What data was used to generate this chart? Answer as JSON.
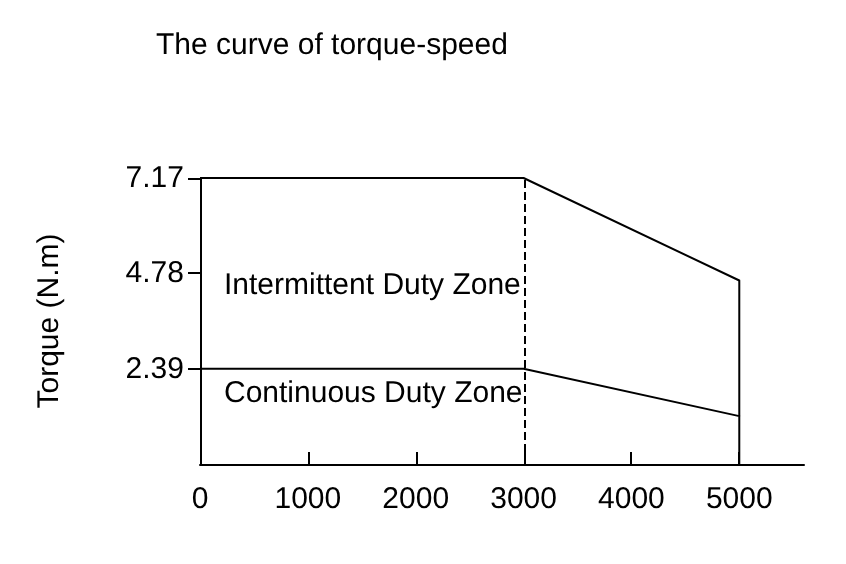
{
  "chart_data": {
    "type": "line",
    "title": "The curve of torque-speed",
    "ylabel": "Torque (N.m)",
    "series": [
      {
        "color": "#000000",
        "x": [
          0,
          3000,
          5000,
          5000
        ],
        "values": [
          7.17,
          7.17,
          4.6,
          1.2
        ]
      },
      {
        "color": "#000000",
        "x": [
          0,
          3000,
          5000,
          5000
        ],
        "values": [
          2.39,
          2.39,
          1.2,
          0
        ]
      }
    ],
    "xlim": [
      0,
      5600
    ],
    "xticks": [
      0,
      1000,
      2000,
      3000,
      4000,
      5000
    ],
    "ylim": [
      0,
      7.17
    ],
    "yticks": [
      2.39,
      4.78,
      7.17
    ],
    "ref_lines": [
      {
        "axis": "x",
        "value": 3000,
        "line_style": "dashed",
        "color": "#000000"
      }
    ],
    "annotations": [
      "Intermittent Duty Zone",
      "Continuous Duty Zone"
    ],
    "marker": "none",
    "line_style": "solid"
  }
}
